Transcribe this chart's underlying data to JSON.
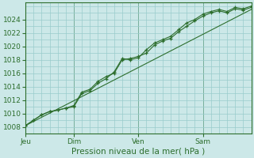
{
  "bg_color": "#cce8e8",
  "grid_color": "#99cccc",
  "line_color": "#2d6e2d",
  "marker_color": "#2d6e2d",
  "xlabel_text": "Pression niveau de la mer( hPa )",
  "ylim": [
    1007,
    1026.5
  ],
  "yticks": [
    1008,
    1010,
    1012,
    1014,
    1016,
    1018,
    1020,
    1022,
    1024
  ],
  "day_labels": [
    "Jeu",
    "Dim",
    "Ven",
    "Sam"
  ],
  "day_positions": [
    0,
    36,
    84,
    132
  ],
  "xlim": [
    0,
    168
  ],
  "series1": [
    [
      0,
      1008.2
    ],
    [
      6,
      1009.0
    ],
    [
      12,
      1009.8
    ],
    [
      18,
      1010.3
    ],
    [
      24,
      1010.5
    ],
    [
      30,
      1010.8
    ],
    [
      36,
      1011.2
    ],
    [
      42,
      1013.2
    ],
    [
      48,
      1013.6
    ],
    [
      54,
      1014.8
    ],
    [
      60,
      1015.5
    ],
    [
      66,
      1016.0
    ],
    [
      72,
      1018.0
    ],
    [
      78,
      1018.2
    ],
    [
      84,
      1018.5
    ],
    [
      90,
      1019.0
    ],
    [
      96,
      1020.2
    ],
    [
      102,
      1020.8
    ],
    [
      108,
      1021.2
    ],
    [
      114,
      1022.2
    ],
    [
      120,
      1023.0
    ],
    [
      126,
      1023.8
    ],
    [
      132,
      1024.5
    ],
    [
      138,
      1025.0
    ],
    [
      144,
      1025.3
    ],
    [
      150,
      1025.0
    ],
    [
      156,
      1025.6
    ],
    [
      162,
      1025.4
    ],
    [
      168,
      1025.8
    ]
  ],
  "series2": [
    [
      0,
      1008.2
    ],
    [
      6,
      1009.0
    ],
    [
      12,
      1009.8
    ],
    [
      18,
      1010.3
    ],
    [
      24,
      1010.5
    ],
    [
      30,
      1010.8
    ],
    [
      36,
      1011.0
    ],
    [
      42,
      1013.0
    ],
    [
      48,
      1013.4
    ],
    [
      54,
      1014.5
    ],
    [
      60,
      1015.2
    ],
    [
      66,
      1016.2
    ],
    [
      72,
      1018.2
    ],
    [
      78,
      1018.0
    ],
    [
      84,
      1018.3
    ],
    [
      90,
      1019.5
    ],
    [
      96,
      1020.5
    ],
    [
      102,
      1021.0
    ],
    [
      108,
      1021.5
    ],
    [
      114,
      1022.5
    ],
    [
      120,
      1023.5
    ],
    [
      126,
      1024.0
    ],
    [
      132,
      1024.8
    ],
    [
      138,
      1025.2
    ],
    [
      144,
      1025.5
    ],
    [
      150,
      1025.2
    ],
    [
      156,
      1025.8
    ],
    [
      162,
      1025.6
    ],
    [
      168,
      1026.0
    ]
  ],
  "series3": [
    [
      0,
      1008.2
    ],
    [
      168,
      1025.5
    ]
  ]
}
